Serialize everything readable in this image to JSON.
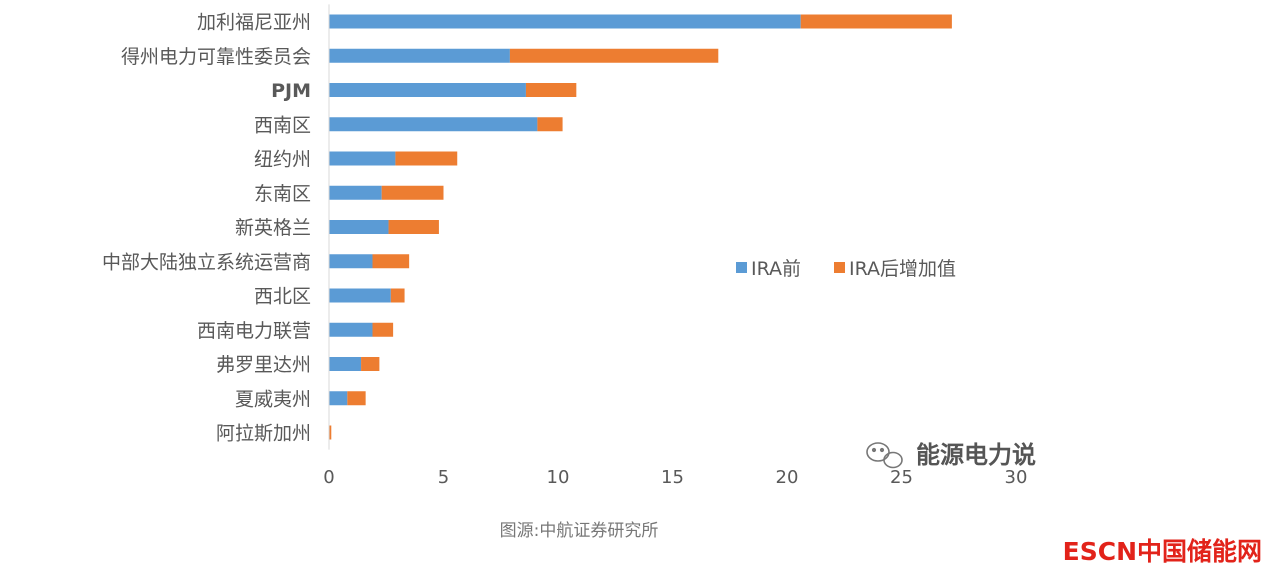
{
  "chart_data": {
    "type": "bar",
    "orientation": "horizontal",
    "stacked": true,
    "categories": [
      "加利福尼亚州",
      "得州电力可靠性委员会",
      "PJM",
      "西南区",
      "纽约州",
      "东南区",
      "新英格兰",
      "中部大陆独立系统运营商",
      "西北区",
      "西南电力联营",
      "弗罗里达州",
      "夏威夷州",
      "阿拉斯加州"
    ],
    "series": [
      {
        "name": "IRA前",
        "color": "#5b9bd5",
        "values": [
          20.6,
          7.9,
          8.6,
          9.1,
          2.9,
          2.3,
          2.6,
          1.9,
          2.7,
          1.9,
          1.4,
          0.8,
          0.0
        ]
      },
      {
        "name": "IRA后增加值",
        "color": "#ed7d31",
        "values": [
          6.6,
          9.1,
          2.2,
          1.1,
          2.7,
          2.7,
          2.2,
          1.6,
          0.6,
          0.9,
          0.8,
          0.8,
          0.1
        ]
      }
    ],
    "xlim": [
      0,
      30
    ],
    "xticks": [
      "0",
      "5",
      "10",
      "15",
      "20",
      "25",
      "30"
    ],
    "legend": {
      "placement": "right"
    },
    "grid": false
  },
  "watermark": {
    "text": "能源电力说"
  },
  "source": {
    "text": "图源:中航证券研究所"
  },
  "logo": {
    "text": "ESCN中国储能网"
  }
}
